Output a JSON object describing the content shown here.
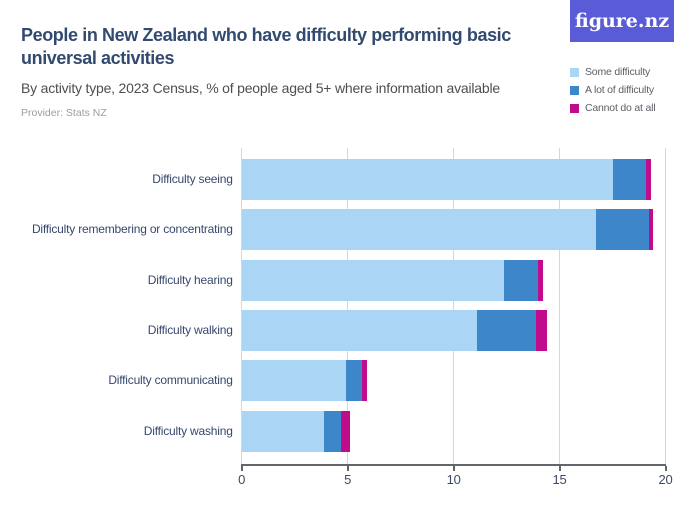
{
  "header": {
    "title": "People in New Zealand who have difficulty performing basic universal activities",
    "subtitle": "By activity type, 2023 Census, % of people aged 5+ where information available",
    "provider": "Provider: Stats NZ"
  },
  "logo": {
    "text": "figure.nz",
    "background_color": "#5a5bd7",
    "text_color": "#ffffff"
  },
  "legend": {
    "items": [
      {
        "label": "Some difficulty",
        "color": "#abd5f5"
      },
      {
        "label": "A lot of difficulty",
        "color": "#3d86c9"
      },
      {
        "label": "Cannot do at all",
        "color": "#c00c8c"
      }
    ]
  },
  "chart_data": {
    "type": "bar",
    "orientation": "horizontal",
    "stacked": true,
    "unit": "%",
    "title": "People in New Zealand who have difficulty performing basic universal activities",
    "subtitle": "By activity type, 2023 Census, % of people aged 5+ where information available",
    "xlabel": "",
    "ylabel": "",
    "xlim": [
      0,
      20
    ],
    "xticks": [
      0,
      5,
      10,
      15,
      20
    ],
    "grid": true,
    "legend_position": "top-right",
    "categories": [
      "Difficulty seeing",
      "Difficulty remembering or concentrating",
      "Difficulty hearing",
      "Difficulty walking",
      "Difficulty communicating",
      "Difficulty washing"
    ],
    "series": [
      {
        "name": "Some difficulty",
        "color": "#abd5f5",
        "values": [
          17.5,
          16.7,
          12.4,
          11.1,
          4.9,
          3.9
        ]
      },
      {
        "name": "A lot of difficulty",
        "color": "#3d86c9",
        "values": [
          1.6,
          2.5,
          1.6,
          2.8,
          0.8,
          0.8
        ]
      },
      {
        "name": "Cannot do at all",
        "color": "#c00c8c",
        "values": [
          0.2,
          0.2,
          0.2,
          0.5,
          0.2,
          0.4
        ]
      }
    ]
  },
  "colors": {
    "title": "#334a70",
    "subtitle": "#4c4f52",
    "provider": "#9a9da0",
    "gridline": "#d6d7d9",
    "axis": "#636669",
    "tick_label": "#3a4a66",
    "category_label": "#36486d",
    "background": "#ffffff"
  }
}
